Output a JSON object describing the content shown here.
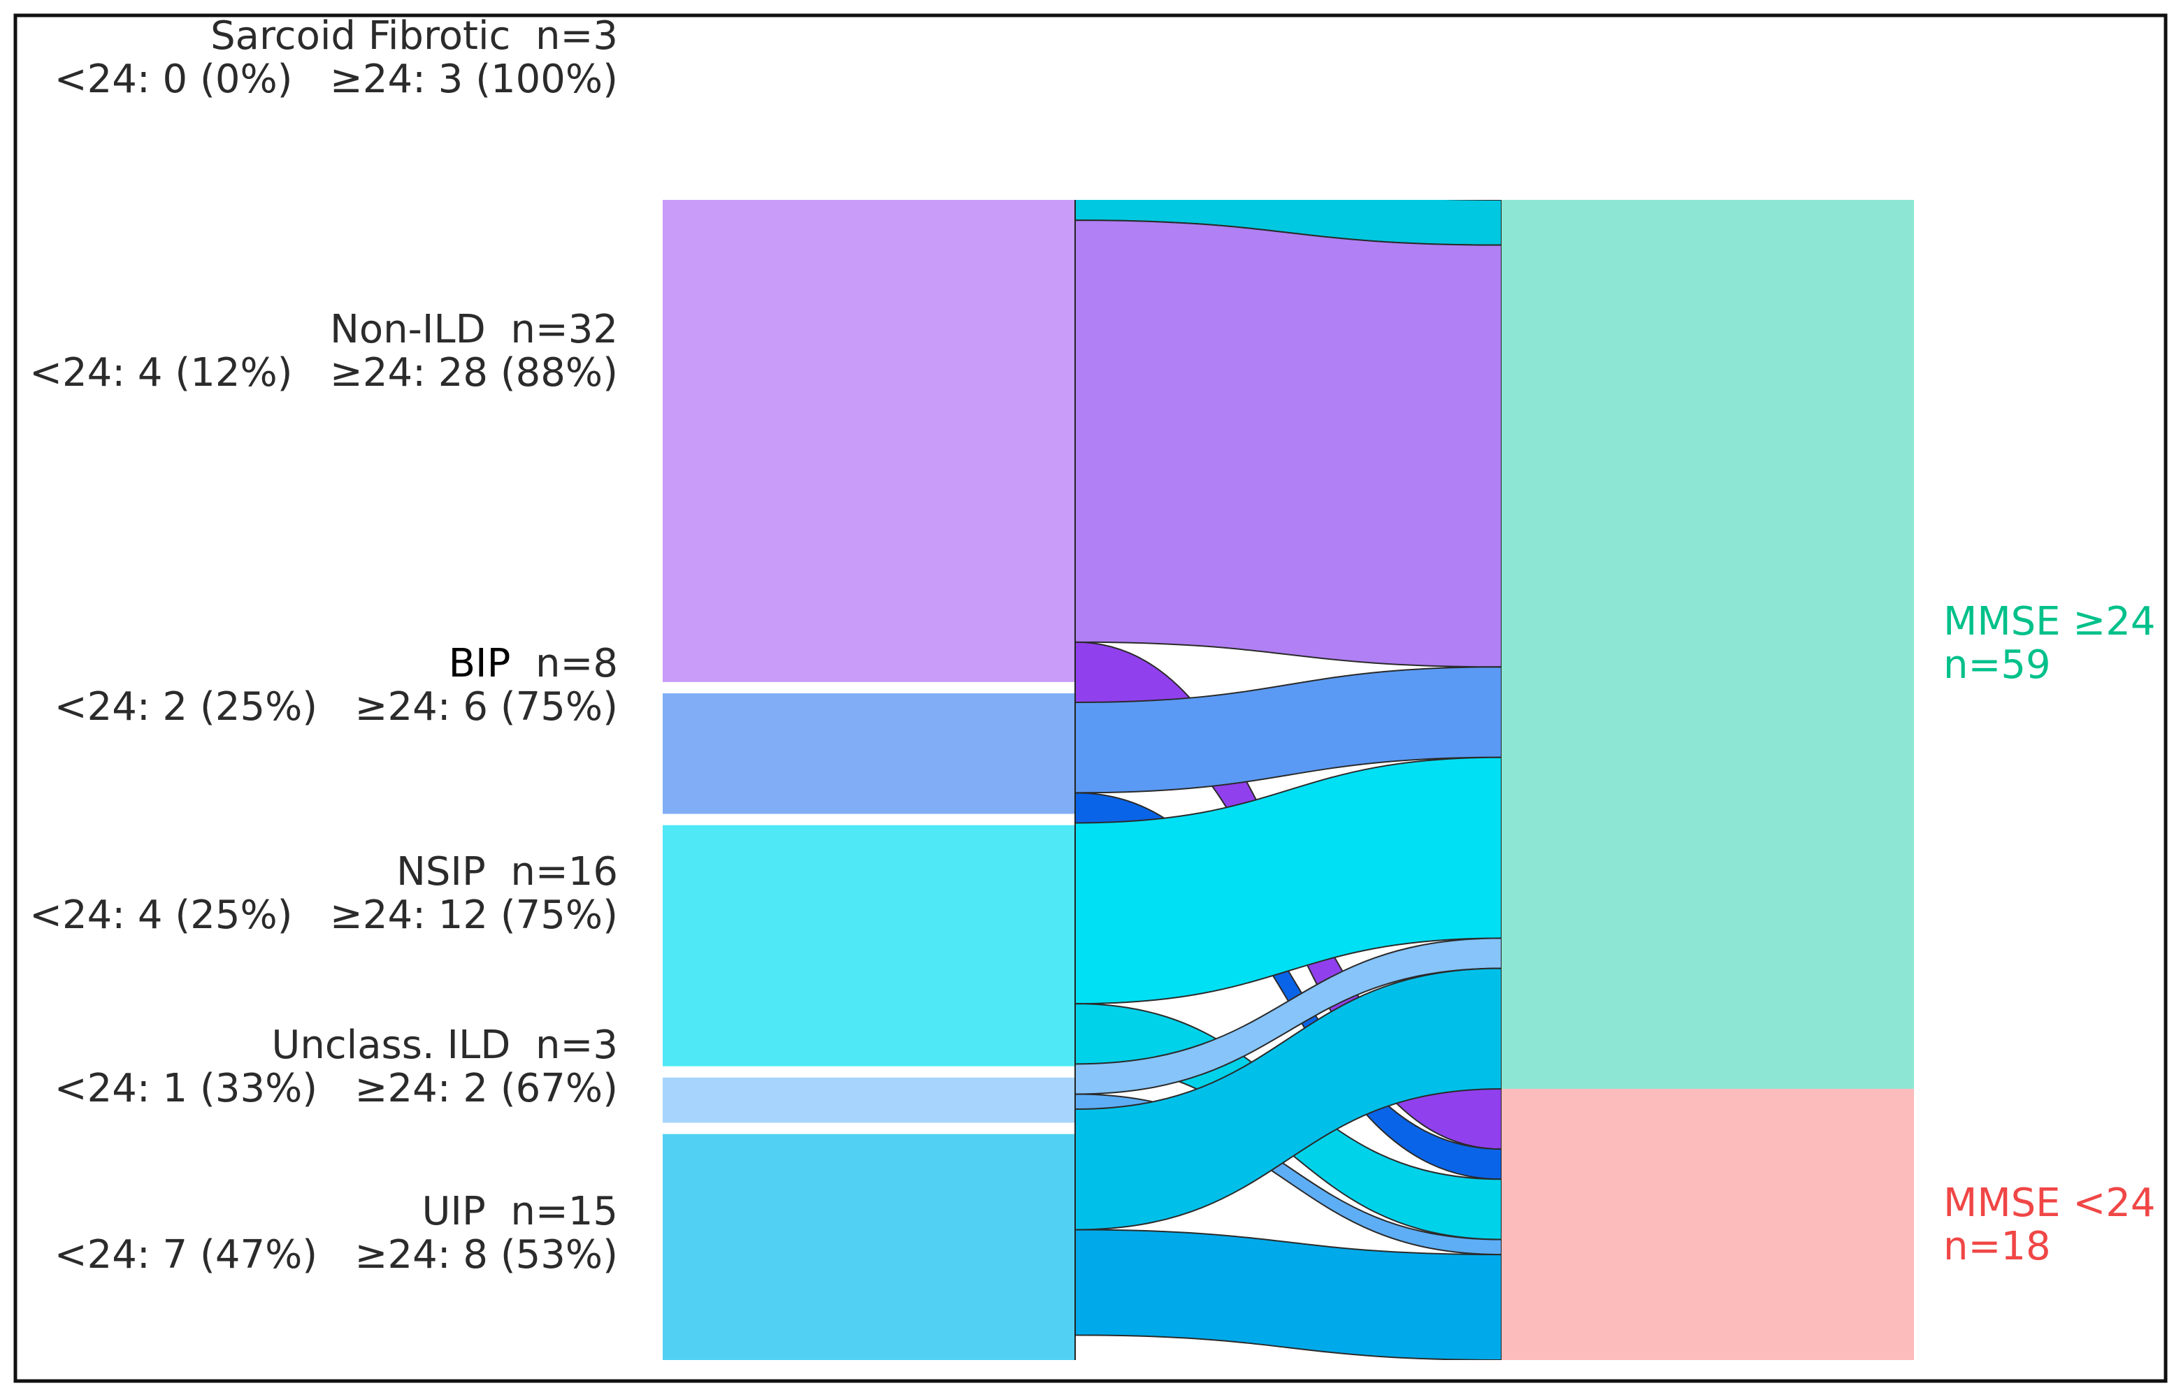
{
  "chart_data": {
    "type": "sankey",
    "sources": [
      {
        "name": "Sarcoid Fibrotic",
        "n_label": "n=3",
        "n": 3,
        "lt24": 0,
        "ge24": 3,
        "stats_label_lt": "<24: 0 (0%)",
        "stats_label_ge": "≥24: 3 (100%)",
        "color": "#00c8e0",
        "flow_ge_color": "#00c8e0",
        "flow_lt_color": "#00c8e0"
      },
      {
        "name": "Non-ILD",
        "n_label": "n=32",
        "n": 32,
        "lt24": 4,
        "ge24": 28,
        "stats_label_lt": "<24: 4 (12%)",
        "stats_label_ge": "≥24: 28 (88%)",
        "color": "#c89cf8",
        "flow_ge_color": "#b080f4",
        "flow_lt_color": "#9140ee"
      },
      {
        "name": "BIP",
        "n_label": "n=8",
        "n": 8,
        "lt24": 2,
        "ge24": 6,
        "stats_label_lt": "<24: 2 (25%)",
        "stats_label_ge": "≥24: 6 (75%)",
        "color": "#80adf6",
        "flow_ge_color": "#5b9af4",
        "flow_lt_color": "#0a64e8"
      },
      {
        "name": "NSIP",
        "n_label": "n=16",
        "n": 16,
        "lt24": 4,
        "ge24": 12,
        "stats_label_lt": "<24: 4 (25%)",
        "stats_label_ge": "≥24: 12 (75%)",
        "color": "#4ee8f6",
        "flow_ge_color": "#00e0f4",
        "flow_lt_color": "#00d2ea"
      },
      {
        "name": "Unclass. ILD",
        "n_label": "n=3",
        "n": 3,
        "lt24": 1,
        "ge24": 2,
        "stats_label_lt": "<24: 1 (33%)",
        "stats_label_ge": "≥24: 2 (67%)",
        "color": "#a6d4fc",
        "flow_ge_color": "#86c4fa",
        "flow_lt_color": "#5eaef6"
      },
      {
        "name": "UIP",
        "n_label": "n=15",
        "n": 15,
        "lt24": 7,
        "ge24": 8,
        "stats_label_lt": "<24: 7 (47%)",
        "stats_label_ge": "≥24: 8 (53%)",
        "color": "#52d0f4",
        "flow_ge_color": "#00c0ea",
        "flow_lt_color": "#00aaea"
      }
    ],
    "targets": [
      {
        "name": "MMSE ≥24",
        "n_label": "n=59",
        "n": 59,
        "color": "#8de6d3",
        "label_color": "#00c08a"
      },
      {
        "name": "MMSE <24",
        "n_label": "n=18",
        "n": 18,
        "color": "#fdbcbc",
        "label_color": "#f04646"
      }
    ]
  }
}
